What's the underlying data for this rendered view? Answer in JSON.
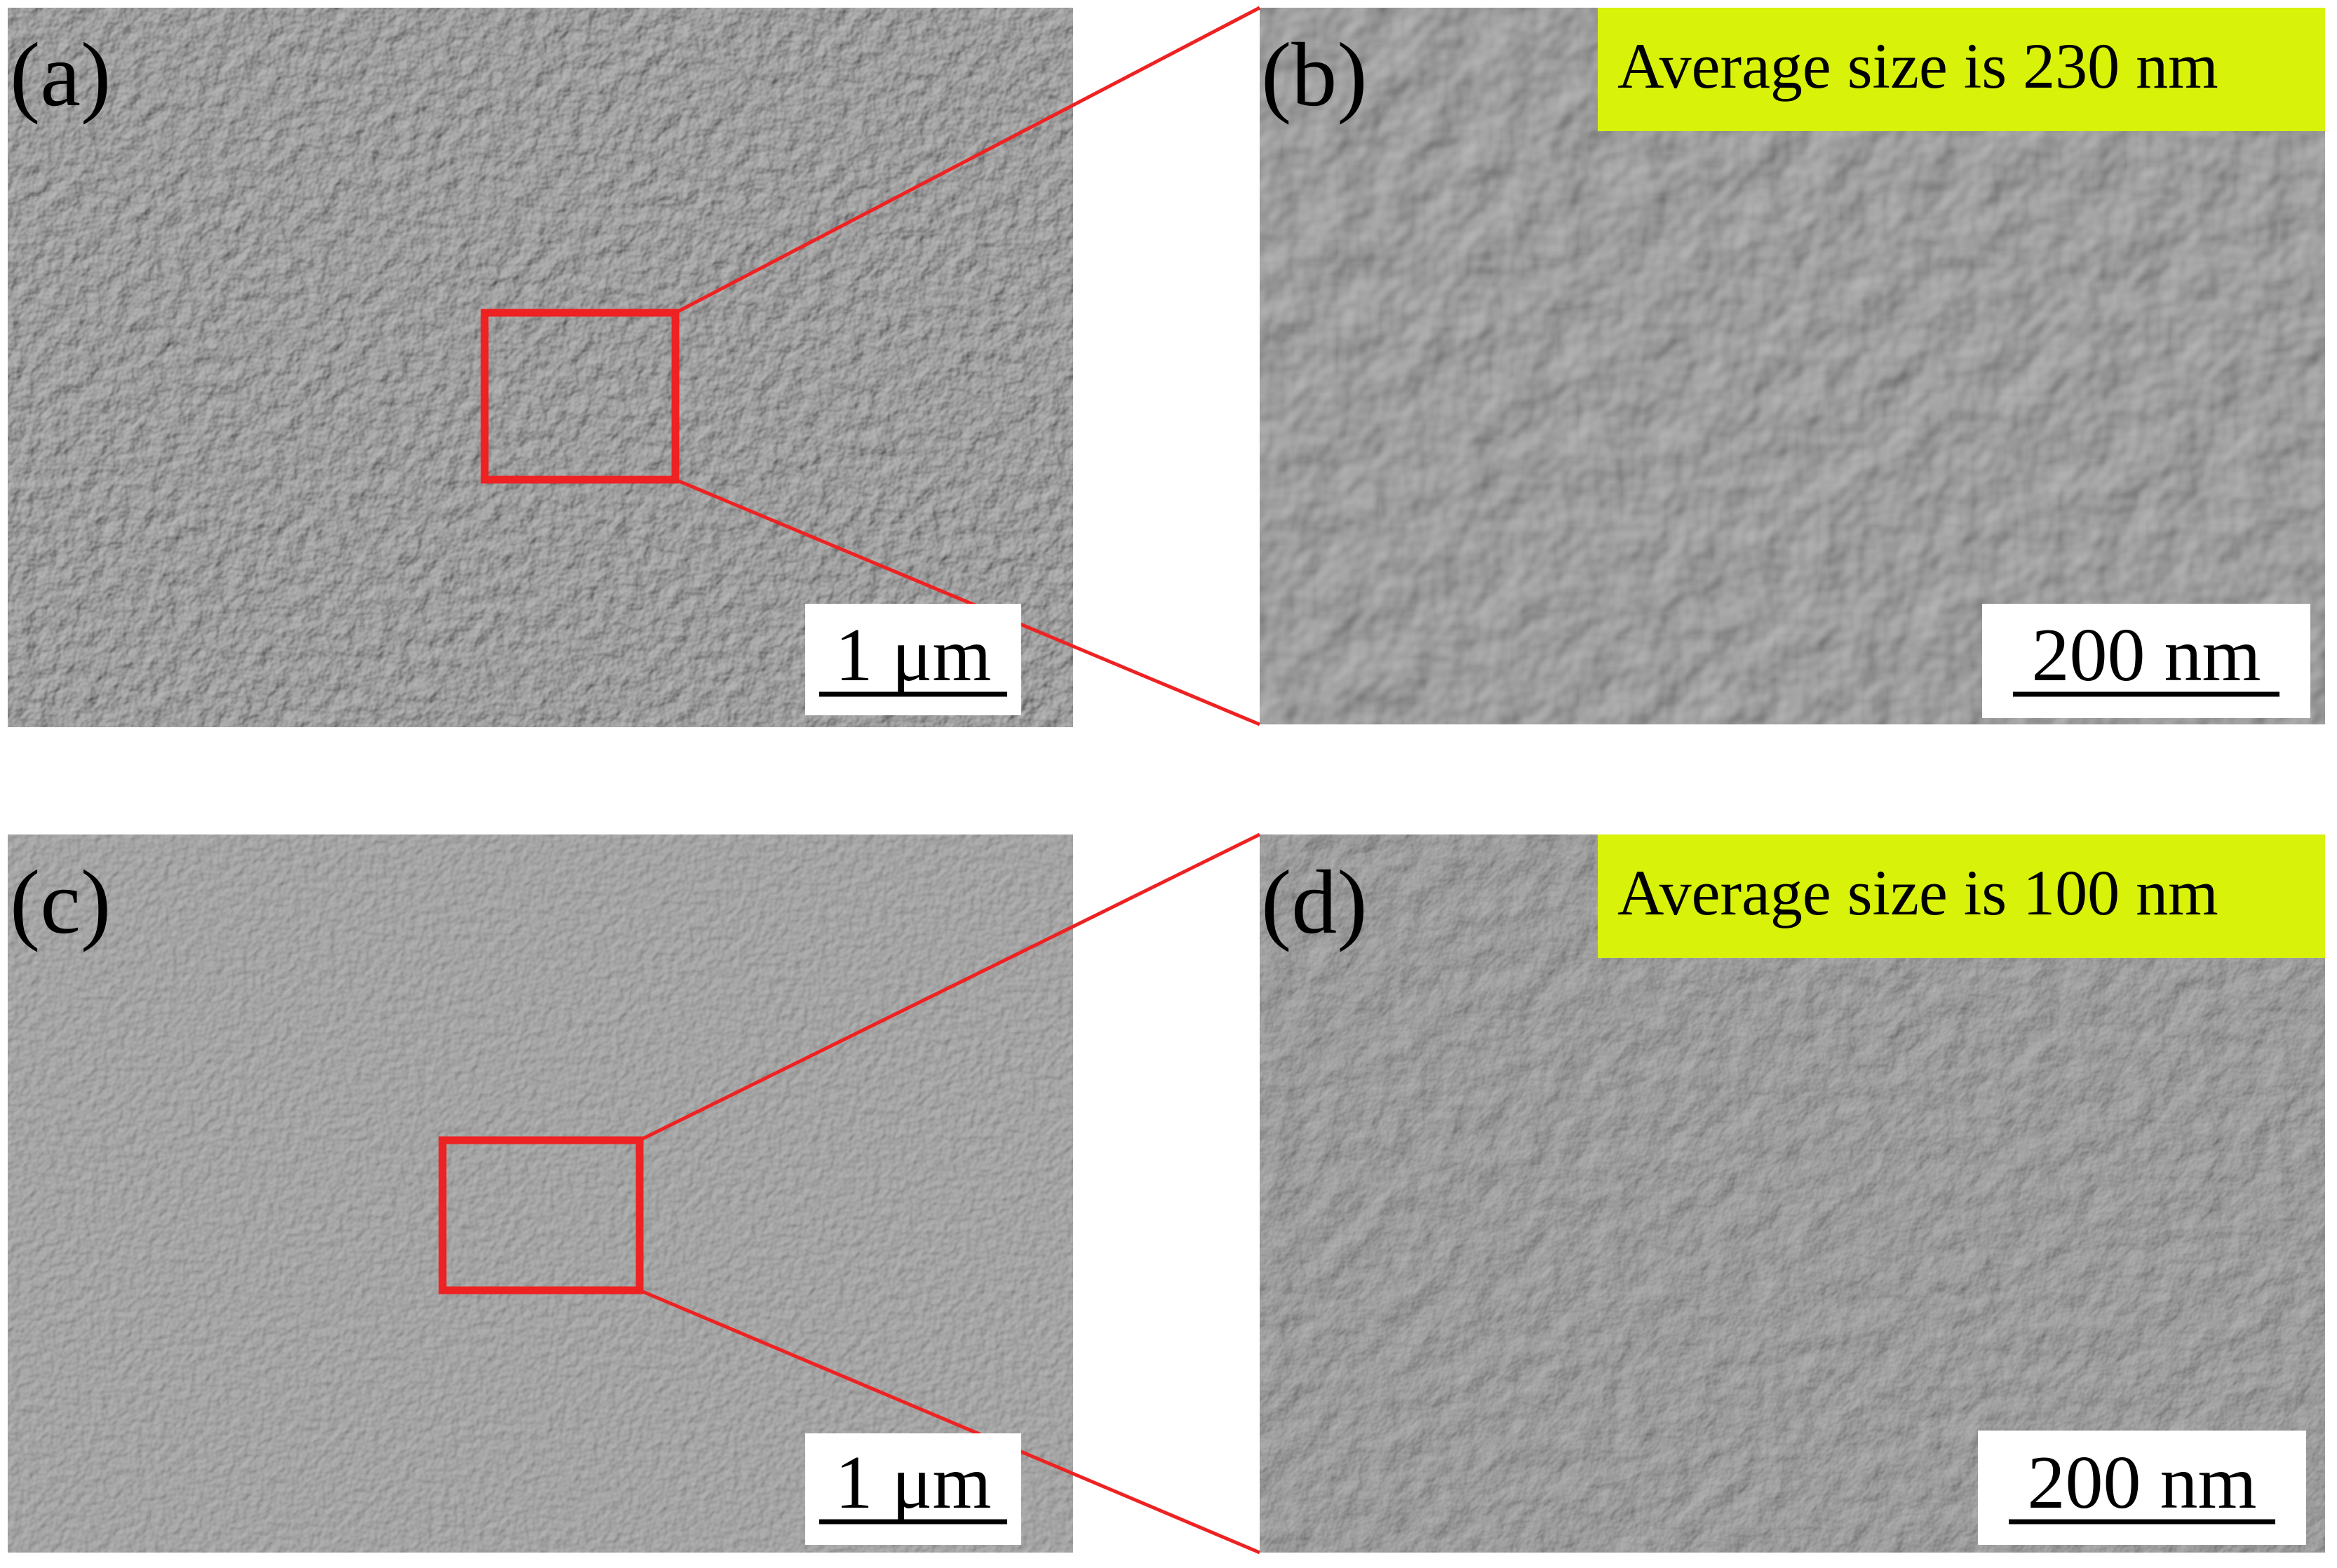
{
  "panels": [
    {
      "label": "(a)",
      "scale_bar": "1 μm"
    },
    {
      "label": "(b)",
      "scale_bar": "200 nm",
      "annotation": "Average size is 230 nm"
    },
    {
      "label": "(c)",
      "scale_bar": "1 μm"
    },
    {
      "label": "(d)",
      "scale_bar": "200 nm",
      "annotation": "Average size is 100 nm"
    }
  ]
}
